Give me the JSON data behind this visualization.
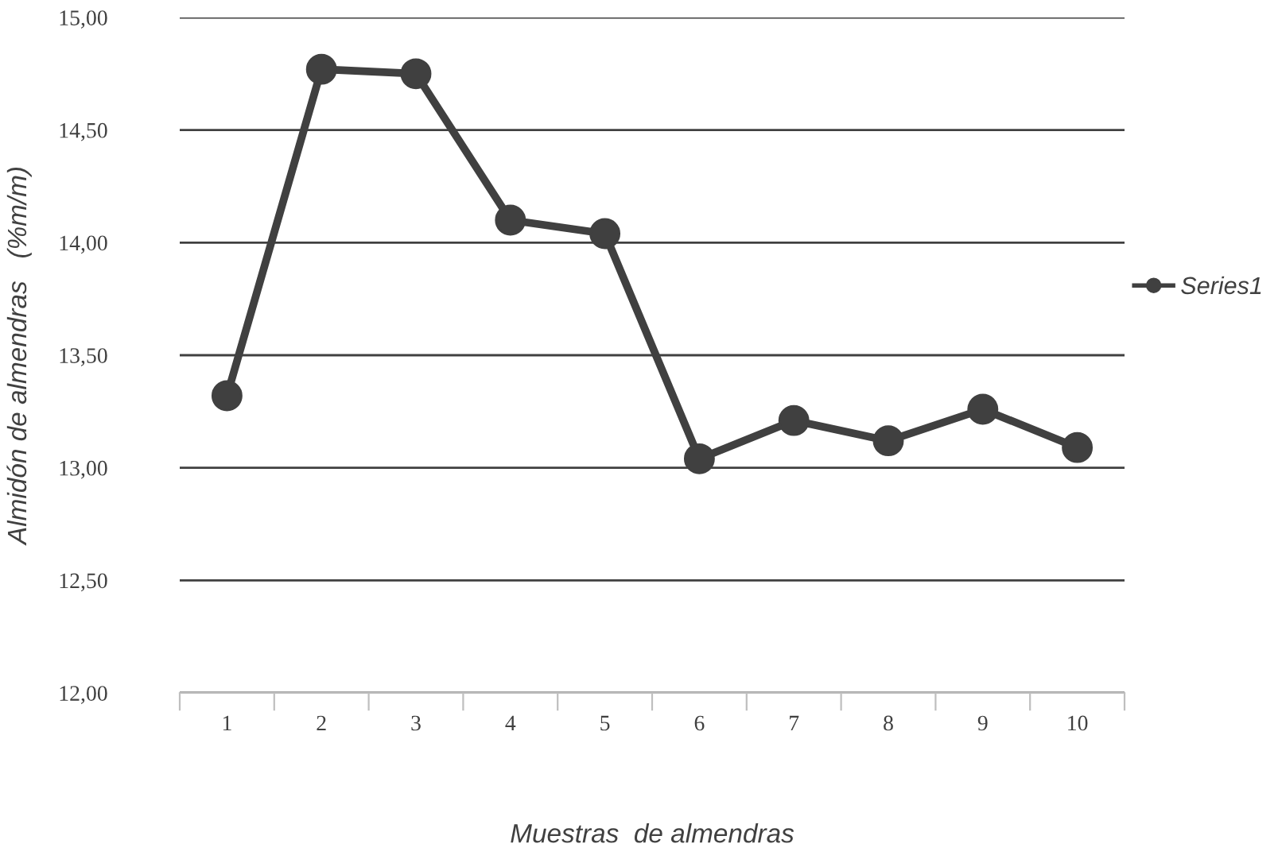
{
  "chart_data": {
    "type": "line",
    "xlabel": "Muestras  de almendras",
    "ylabel": "Almidón de almendras   (%m/m)",
    "categories": [
      "1",
      "2",
      "3",
      "4",
      "5",
      "6",
      "7",
      "8",
      "9",
      "10"
    ],
    "series": [
      {
        "name": "Series1",
        "color": "#404040",
        "values": [
          13.32,
          14.77,
          14.75,
          14.1,
          14.04,
          13.04,
          13.21,
          13.12,
          13.26,
          13.09
        ]
      }
    ],
    "ylim": [
      12,
      15
    ],
    "yticks": [
      {
        "value": 12,
        "label": "12,00"
      },
      {
        "value": 12.5,
        "label": "12,50"
      },
      {
        "value": 13,
        "label": "13,00"
      },
      {
        "value": 13.5,
        "label": "13,50"
      },
      {
        "value": 14,
        "label": "14,00"
      },
      {
        "value": 14.5,
        "label": "14,50"
      },
      {
        "value": 15,
        "label": "15,00"
      }
    ],
    "grid": "y",
    "legend": "right",
    "marker": "circle",
    "line_style": "solid"
  }
}
